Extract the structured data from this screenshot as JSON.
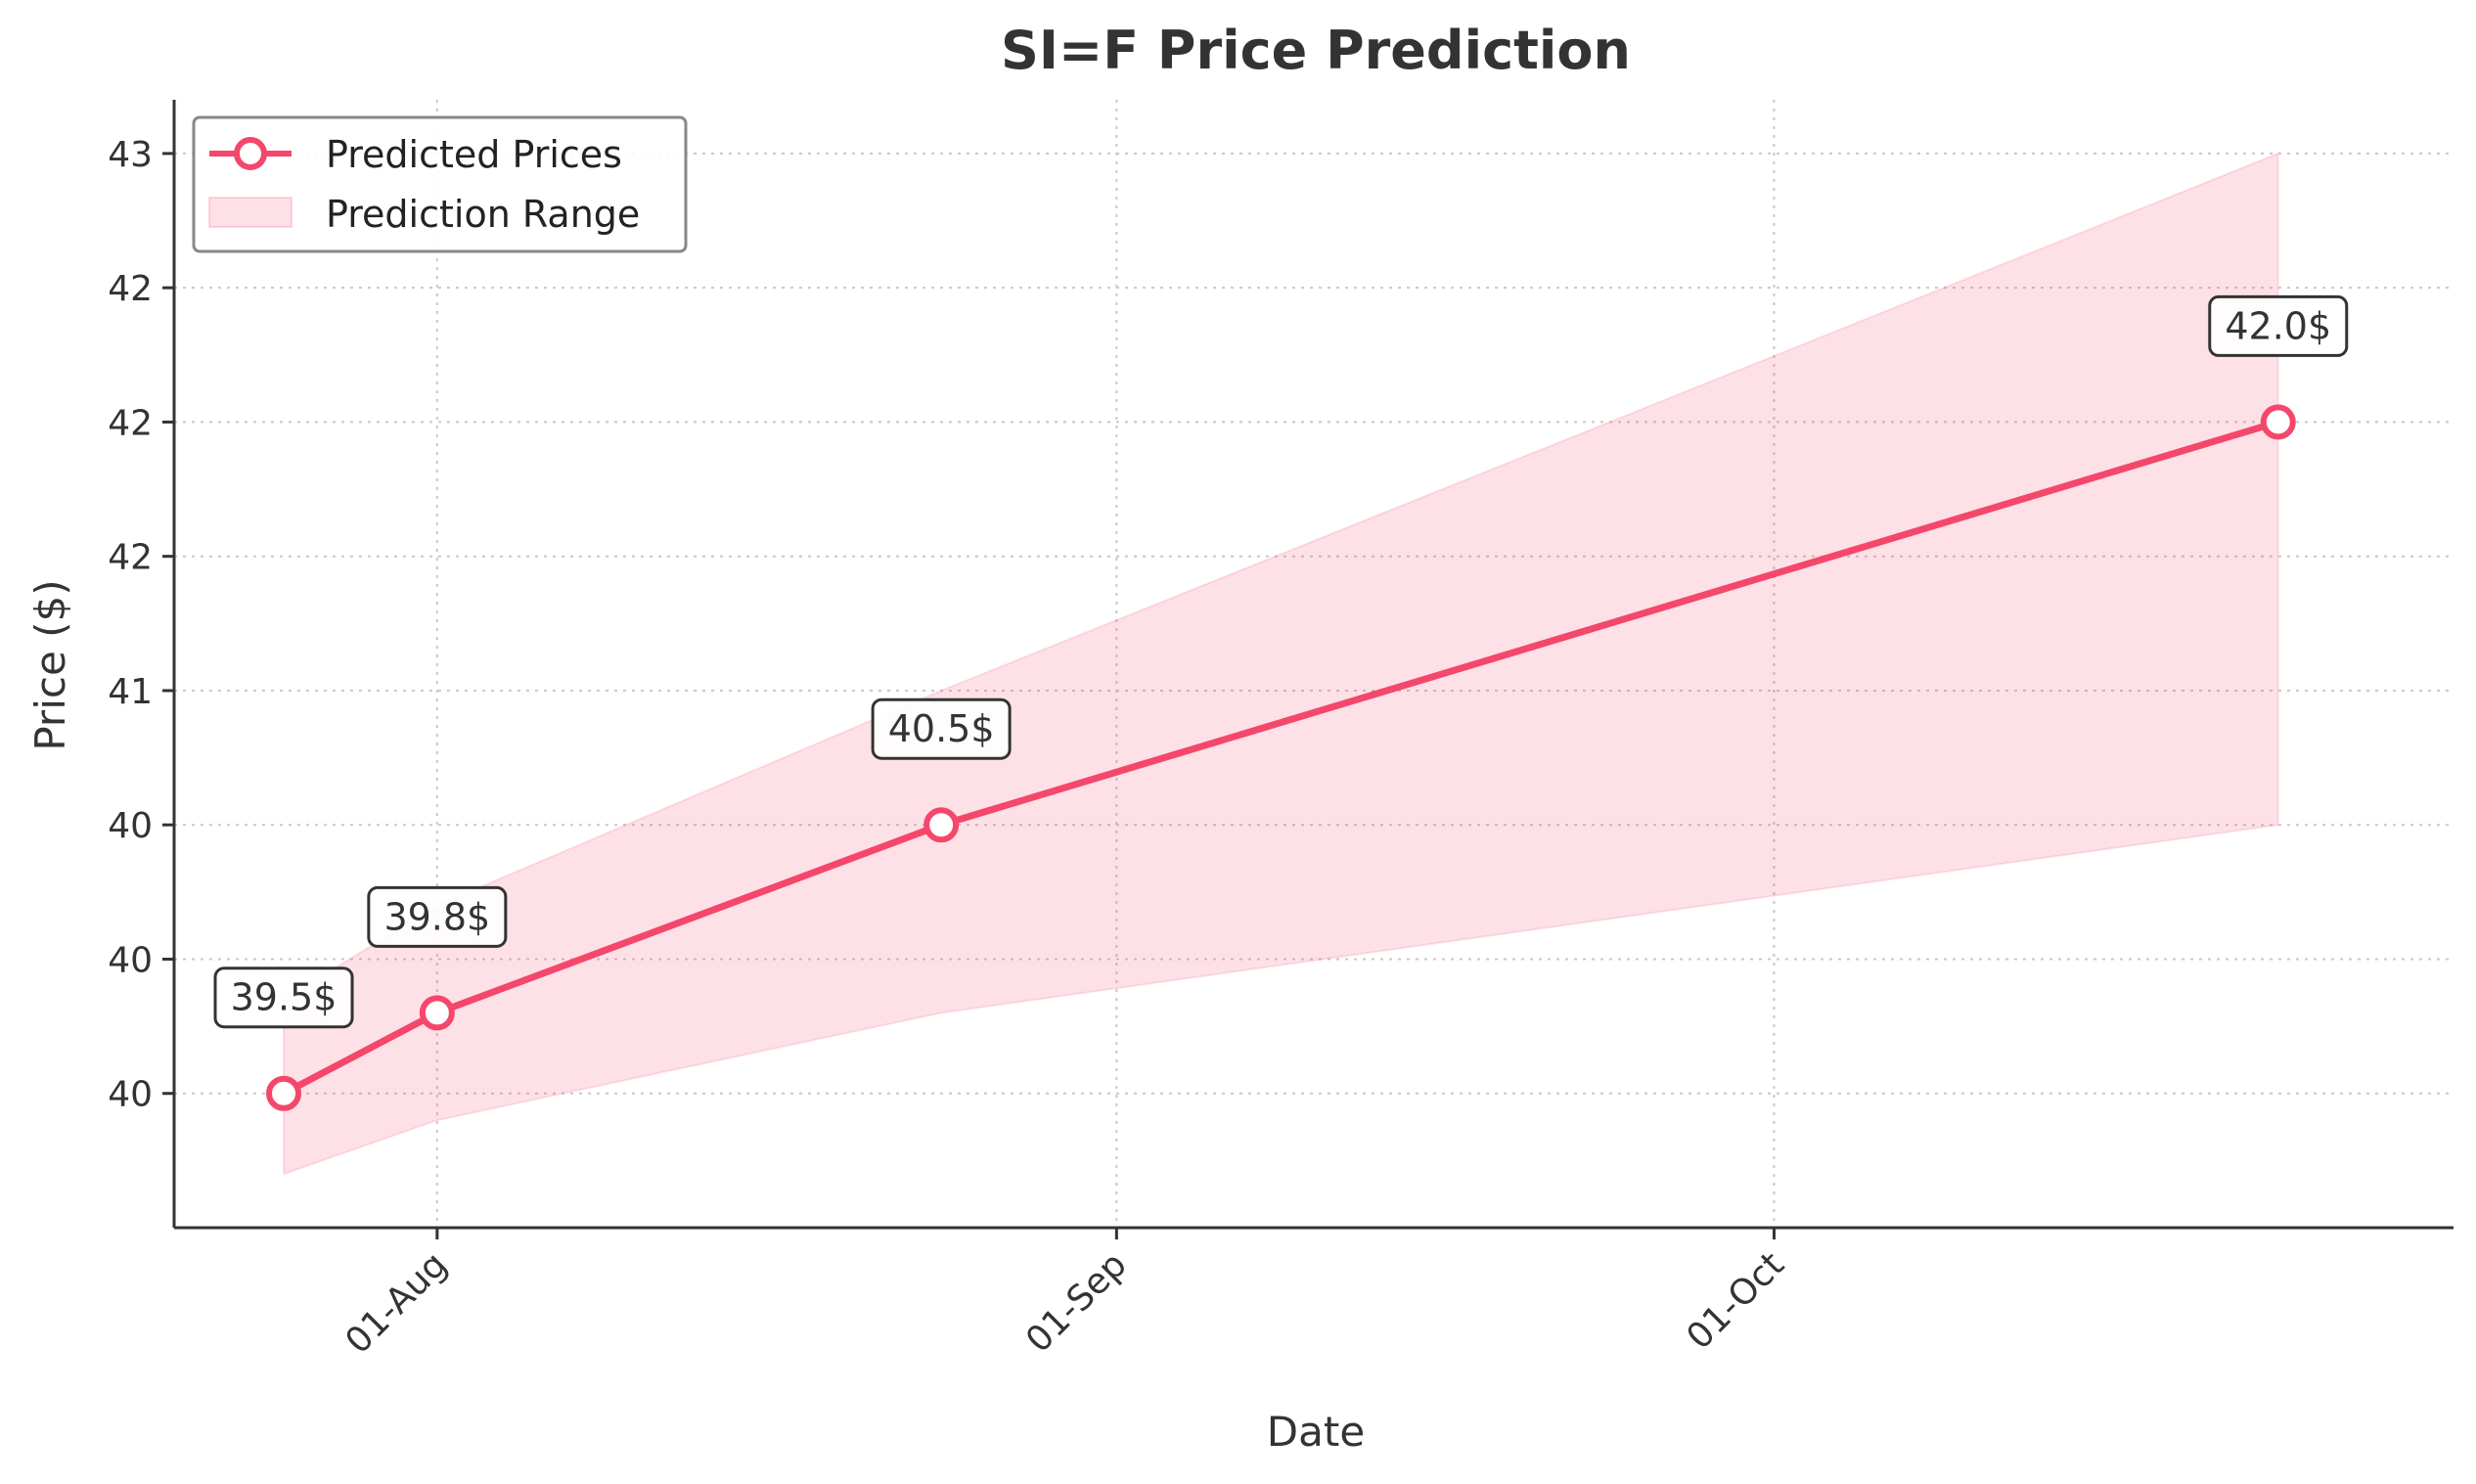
{
  "chart_data": {
    "type": "line",
    "title": "SI=F Price Prediction",
    "xlabel": "Date",
    "ylabel": "Price ($)",
    "x": [
      "2024-07-25",
      "2024-08-01",
      "2024-08-24",
      "2024-10-24"
    ],
    "series": [
      {
        "name": "Predicted Prices",
        "values": [
          39.5,
          39.8,
          40.5,
          42.0
        ],
        "labels": [
          "39.5$",
          "39.8$",
          "40.5$",
          "42.0$"
        ],
        "color": "#f4476b"
      }
    ],
    "range": {
      "name": "Prediction Range",
      "lower": [
        39.2,
        39.4,
        39.8,
        40.5
      ],
      "upper": [
        39.85,
        40.2,
        41.0,
        43.0
      ],
      "color": "#f4476b"
    },
    "xticks": [
      {
        "date": "2024-08-01",
        "label": "01-Aug"
      },
      {
        "date": "2024-09-01",
        "label": "01-Sep"
      },
      {
        "date": "2024-10-01",
        "label": "01-Oct"
      }
    ],
    "yticks": [
      {
        "value": 39.5,
        "label": "40"
      },
      {
        "value": 40.0,
        "label": "40"
      },
      {
        "value": 40.5,
        "label": "40"
      },
      {
        "value": 41.0,
        "label": "41"
      },
      {
        "value": 41.5,
        "label": "42"
      },
      {
        "value": 42.0,
        "label": "42"
      },
      {
        "value": 42.5,
        "label": "42"
      },
      {
        "value": 43.0,
        "label": "43"
      }
    ],
    "xlim": [
      "2024-07-20",
      "2024-11-01"
    ],
    "ylim": [
      39.0,
      43.2
    ],
    "grid": true,
    "legend_position": "top-left"
  }
}
